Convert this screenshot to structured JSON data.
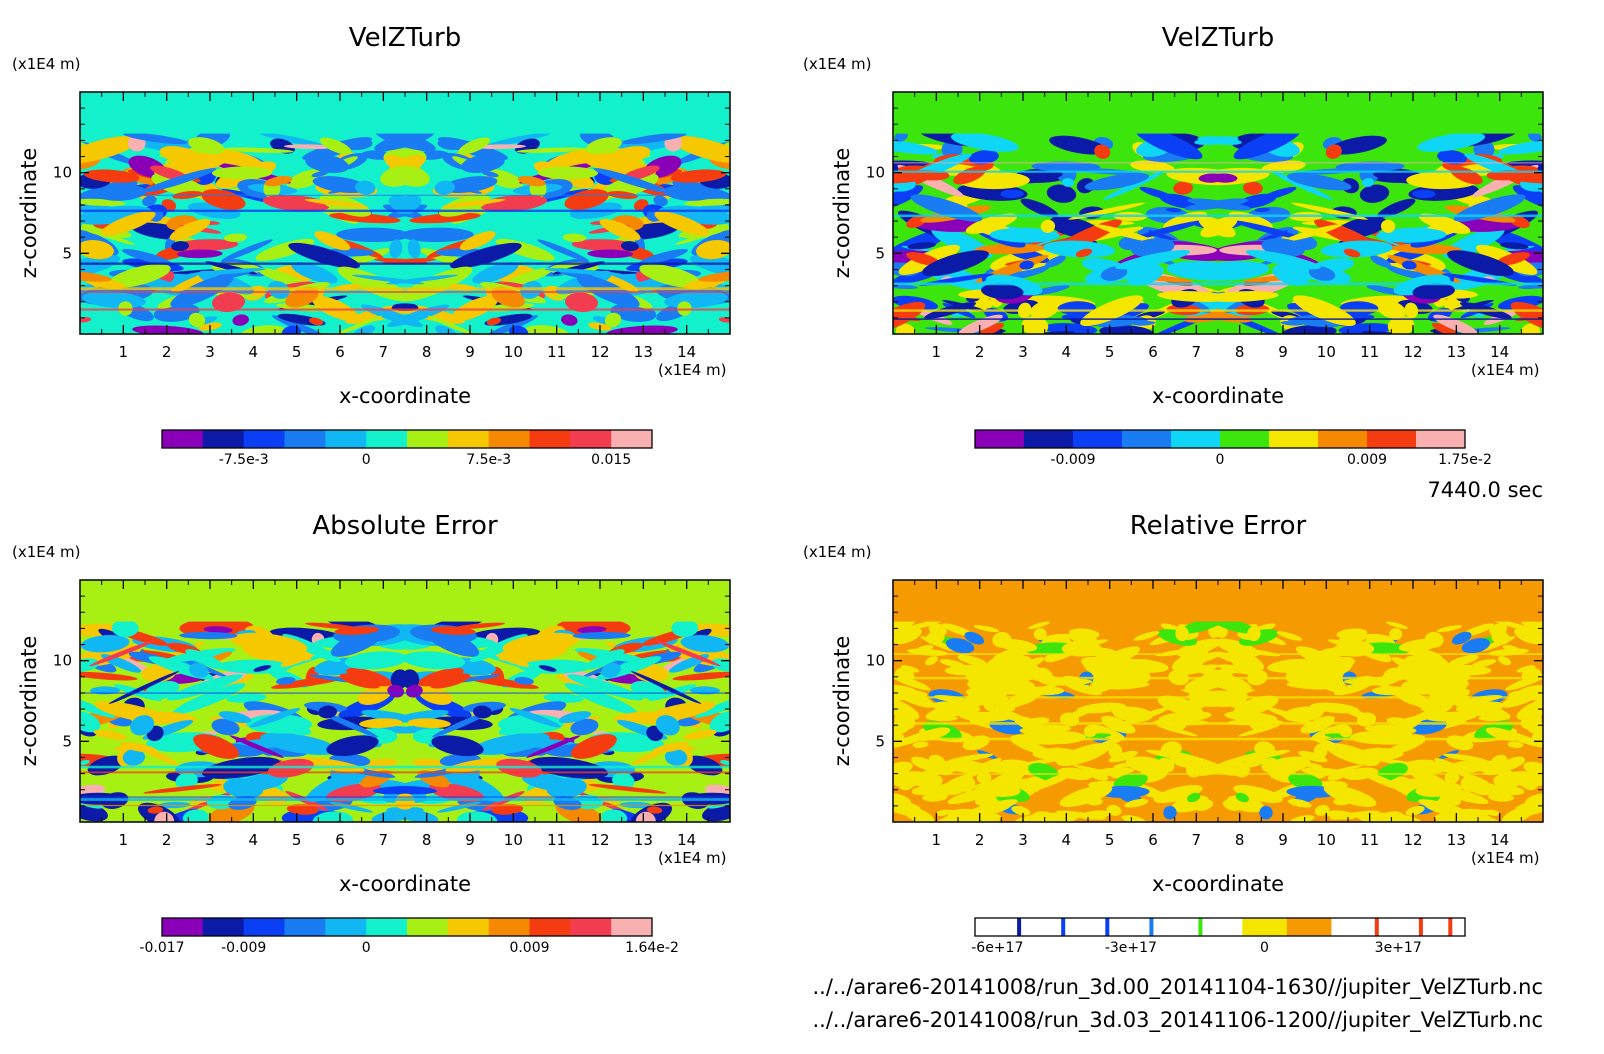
{
  "time_label": "7440.0 sec",
  "files": [
    "../../arare6-20141008/run_3d.00_20141104-1630//jupiter_VelZTurb.nc",
    "../../arare6-20141008/run_3d.03_20141106-1200//jupiter_VelZTurb.nc"
  ],
  "chart_data": [
    {
      "type": "heatmap",
      "title": "VelZTurb",
      "xlabel": "x-coordinate",
      "ylabel": "z-coordinate",
      "x_unit": "(x1E4 m)",
      "y_unit": "(x1E4 m)",
      "xlim": [
        0,
        15
      ],
      "ylim": [
        0,
        15
      ],
      "x_ticks": [
        "1",
        "2",
        "3",
        "4",
        "5",
        "6",
        "7",
        "8",
        "9",
        "10",
        "11",
        "12",
        "13",
        "14"
      ],
      "y_ticks": [
        "5",
        "10"
      ],
      "background_color": "#12f0cc",
      "colorbar": {
        "colors": [
          "#8a00b8",
          "#0c1aa8",
          "#0a3ff5",
          "#1a7cf2",
          "#10b7f2",
          "#12f0cc",
          "#a8f014",
          "#f5c800",
          "#f58a00",
          "#f53c10",
          "#f23c50",
          "#f8b0b0"
        ],
        "tick_labels": [
          "-7.5e-3",
          "0",
          "7.5e-3",
          "0.015"
        ],
        "tick_at_boundary": [
          2,
          5,
          8,
          11
        ]
      }
    },
    {
      "type": "heatmap",
      "title": "VelZTurb",
      "xlabel": "x-coordinate",
      "ylabel": "z-coordinate",
      "x_unit": "(x1E4 m)",
      "y_unit": "(x1E4 m)",
      "xlim": [
        0,
        15
      ],
      "ylim": [
        0,
        15
      ],
      "x_ticks": [
        "1",
        "2",
        "3",
        "4",
        "5",
        "6",
        "7",
        "8",
        "9",
        "10",
        "11",
        "12",
        "13",
        "14"
      ],
      "y_ticks": [
        "5",
        "10"
      ],
      "background_color": "#3ce60c",
      "colorbar": {
        "colors": [
          "#8a00b8",
          "#0c1aa8",
          "#0a3ff5",
          "#1a7cf2",
          "#10d6f5",
          "#3ce60c",
          "#f5e600",
          "#f58a00",
          "#f53c10",
          "#f8b0b0"
        ],
        "tick_labels": [
          "-0.009",
          "0",
          "0.009",
          "1.75e-2"
        ],
        "tick_at_boundary": [
          2,
          5,
          8,
          10
        ]
      }
    },
    {
      "type": "heatmap",
      "title": "Absolute Error",
      "xlabel": "x-coordinate",
      "ylabel": "z-coordinate",
      "x_unit": "(x1E4 m)",
      "y_unit": "(x1E4 m)",
      "xlim": [
        0,
        15
      ],
      "ylim": [
        0,
        15
      ],
      "x_ticks": [
        "1",
        "2",
        "3",
        "4",
        "5",
        "6",
        "7",
        "8",
        "9",
        "10",
        "11",
        "12",
        "13",
        "14"
      ],
      "y_ticks": [
        "5",
        "10"
      ],
      "background_color": "#a8f014",
      "colorbar": {
        "colors": [
          "#8a00b8",
          "#0c1aa8",
          "#0a3ff5",
          "#1a7cf2",
          "#10b7f2",
          "#12f0cc",
          "#a8f014",
          "#f5c800",
          "#f58a00",
          "#f53c10",
          "#f23c50",
          "#f8b0b0"
        ],
        "tick_labels": [
          "-0.017",
          "-0.009",
          "0",
          "0.009",
          "1.64e-2"
        ],
        "tick_at_boundary": [
          0,
          2,
          5,
          9,
          12
        ]
      }
    },
    {
      "type": "heatmap",
      "title": "Relative Error",
      "xlabel": "x-coordinate",
      "ylabel": "z-coordinate",
      "x_unit": "(x1E4 m)",
      "y_unit": "(x1E4 m)",
      "xlim": [
        0,
        15
      ],
      "ylim": [
        0,
        15
      ],
      "x_ticks": [
        "1",
        "2",
        "3",
        "4",
        "5",
        "6",
        "7",
        "8",
        "9",
        "10",
        "11",
        "12",
        "13",
        "14"
      ],
      "y_ticks": [
        "5",
        "10"
      ],
      "background_color": "#f59a00",
      "colorbar": {
        "colors": [
          "#ffffff",
          "#ffffff",
          "#ffffff",
          "#ffffff",
          "#ffffff",
          "#ffffff",
          "#f5e600",
          "#f59a00",
          "#ffffff",
          "#ffffff",
          "#ffffff"
        ],
        "tick_labels": [
          "-6e+17",
          "-3e+17",
          "0",
          "3e+17"
        ],
        "tick_at_boundary": [
          0.5,
          3.5,
          6.5,
          9.5
        ]
      }
    }
  ]
}
